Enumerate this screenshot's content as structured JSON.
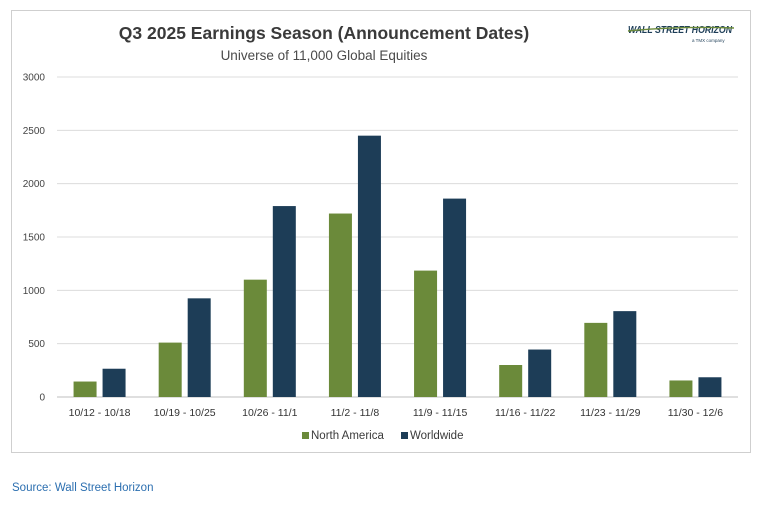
{
  "chart_data": {
    "type": "bar",
    "title": "Q3 2025 Earnings Season (Announcement Dates)",
    "subtitle": "Universe of 11,000 Global Equities",
    "xlabel": "",
    "ylabel": "",
    "categories": [
      "10/12 - 10/18",
      "10/19 - 10/25",
      "10/26 - 11/1",
      "11/2 - 11/8",
      "11/9 - 11/15",
      "11/16 - 11/22",
      "11/23 - 11/29",
      "11/30 - 12/6"
    ],
    "series": [
      {
        "name": "North America",
        "color": "#6b8a3a",
        "values": [
          145,
          510,
          1100,
          1720,
          1185,
          300,
          695,
          155
        ]
      },
      {
        "name": "Worldwide",
        "color": "#1d3d57",
        "values": [
          265,
          925,
          1790,
          2450,
          1860,
          445,
          805,
          185
        ]
      }
    ],
    "ylim": [
      0,
      3000
    ],
    "yticks": [
      0,
      500,
      1000,
      1500,
      2000,
      2500,
      3000
    ],
    "grid": true,
    "legend_position": "bottom-center"
  },
  "logo": {
    "text": "WALL STREET HORIZON",
    "subtext": "a TMX company",
    "color": "#1d3d57",
    "accent": "#6b8a3a"
  },
  "source": "Source: Wall Street Horizon"
}
